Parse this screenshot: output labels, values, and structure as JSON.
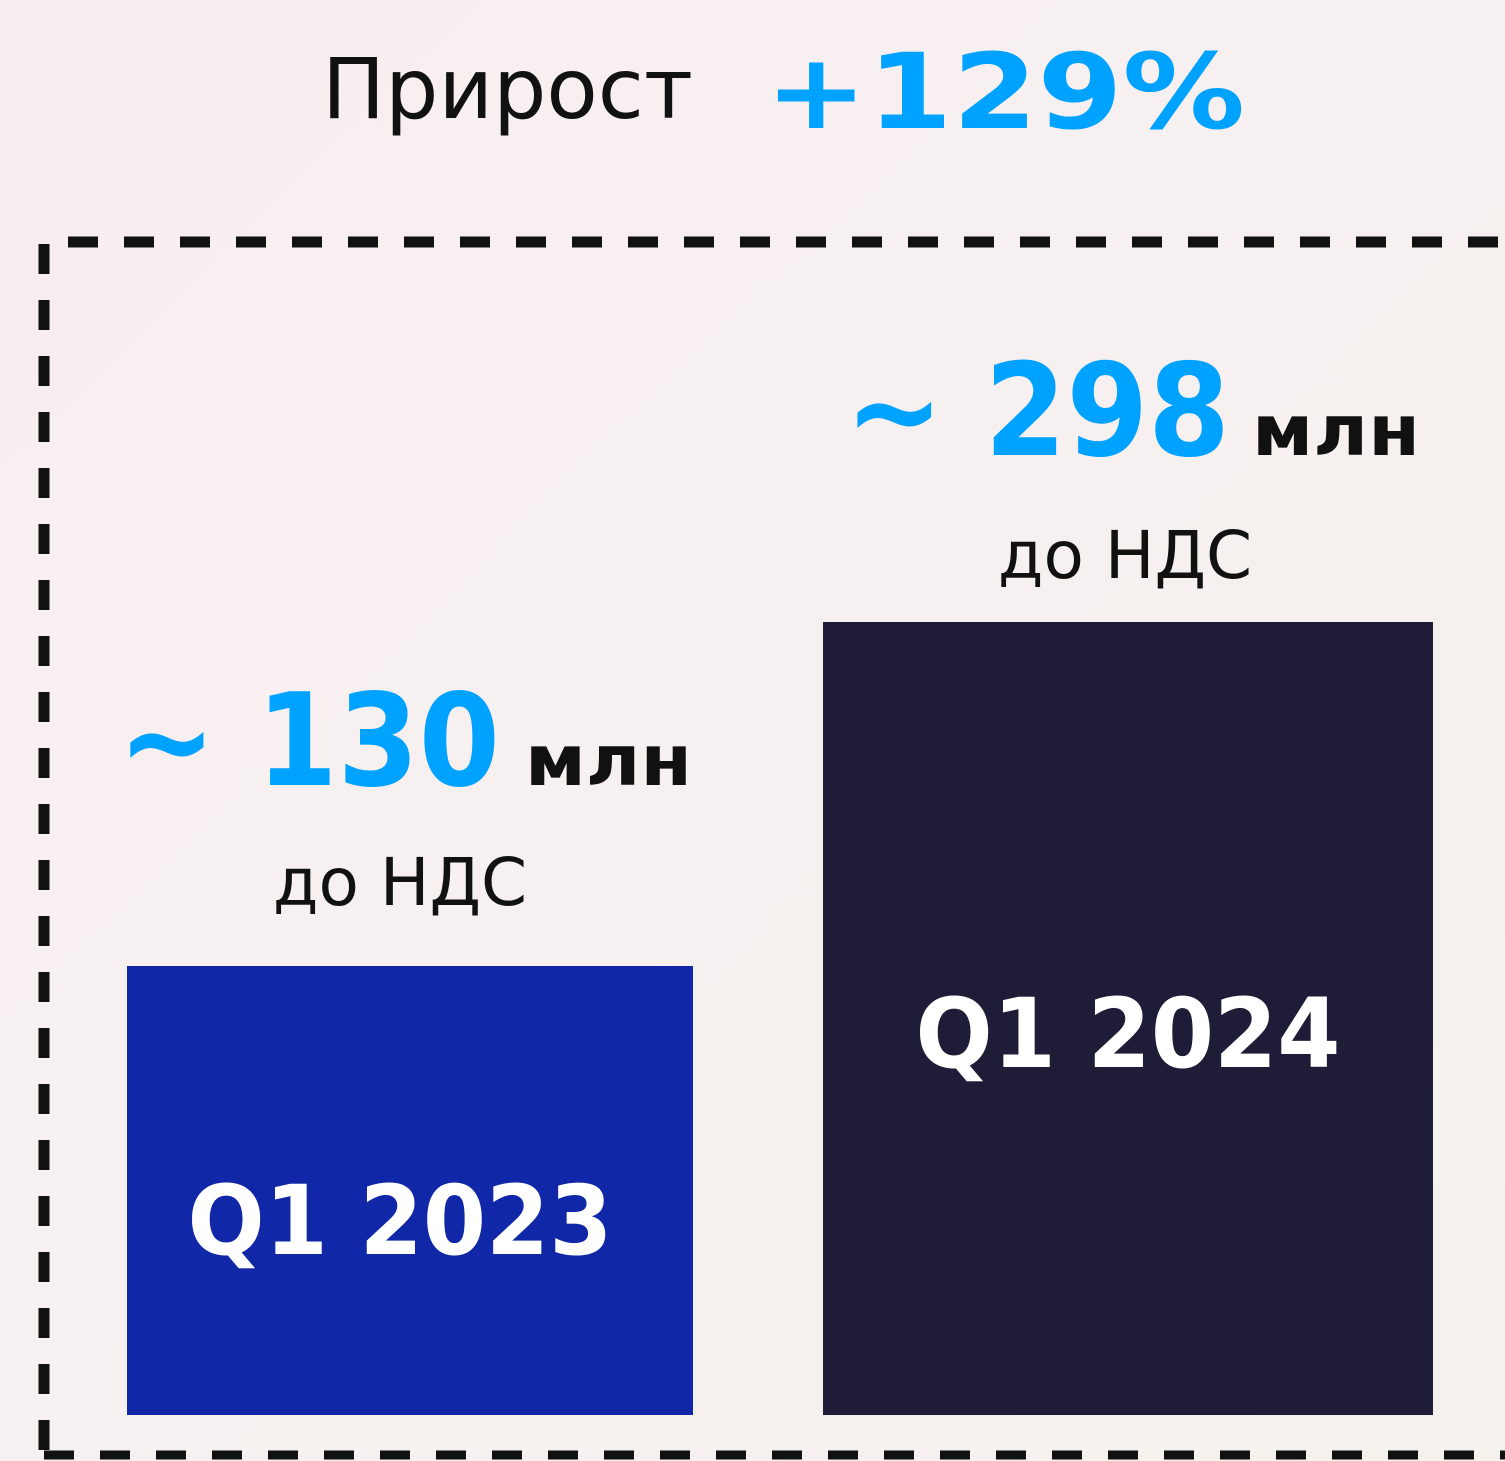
{
  "header": {
    "title": "Прирост",
    "growth": "+129%"
  },
  "items": [
    {
      "value": "~ 130",
      "unit": "млн",
      "note": "до НДС",
      "label": "Q1 2023"
    },
    {
      "value": "~ 298",
      "unit": "млн",
      "note": "до НДС",
      "label": "Q1 2024"
    }
  ]
}
